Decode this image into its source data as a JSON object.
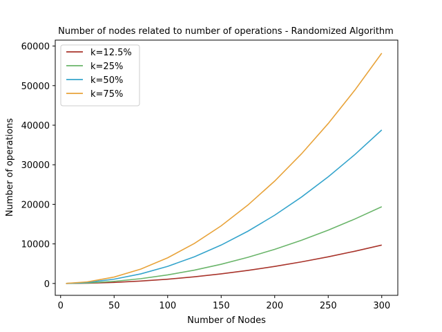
{
  "chart_data": {
    "type": "line",
    "title": "Number of nodes related to number of operations - Randomized Algorithm",
    "xlabel": "Number of Nodes",
    "ylabel": "Number of operations",
    "xlim": [
      -5,
      315
    ],
    "ylim": [
      -3000,
      61500
    ],
    "xticks": [
      0,
      50,
      100,
      150,
      200,
      250,
      300
    ],
    "yticks": [
      0,
      10000,
      20000,
      30000,
      40000,
      50000,
      60000
    ],
    "legend_position": "top-left",
    "grid": false,
    "x": [
      5,
      25,
      50,
      75,
      100,
      125,
      150,
      175,
      200,
      225,
      250,
      275,
      300
    ],
    "series": [
      {
        "name": "k=12.5%",
        "color": "#a8332a",
        "values": [
          3,
          70,
          272,
          609,
          1081,
          1688,
          2428,
          3304,
          4314,
          5459,
          6738,
          8152,
          9700
        ]
      },
      {
        "name": "k=25%",
        "color": "#6ab56a",
        "values": [
          5,
          135,
          542,
          1217,
          2161,
          3375,
          4856,
          6607,
          8627,
          10916,
          13475,
          16302,
          19400
        ]
      },
      {
        "name": "k=50%",
        "color": "#34a4cc",
        "values": [
          11,
          270,
          1083,
          2434,
          4322,
          6750,
          9712,
          13214,
          17254,
          21832,
          26950,
          32604,
          38800
        ]
      },
      {
        "name": "k=75%",
        "color": "#e8a33a",
        "values": [
          16,
          406,
          1625,
          3650,
          6483,
          10125,
          14569,
          19821,
          25881,
          32748,
          40425,
          48906,
          58200
        ]
      }
    ]
  }
}
